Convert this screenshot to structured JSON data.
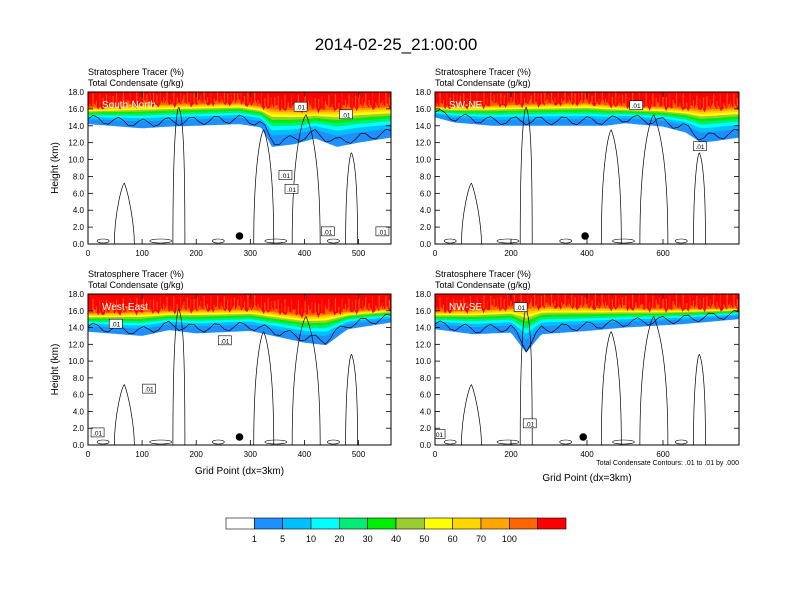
{
  "title": "2014-02-25_21:00:00",
  "colors": {
    "tracer_levels": [
      "#ffffff",
      "#1e8fff",
      "#00bfff",
      "#00ffff",
      "#00ee76",
      "#00ee00",
      "#9acd32",
      "#ffff00",
      "#ffd700",
      "#ffa500",
      "#ff6600",
      "#ff0000"
    ],
    "contour": "#000000"
  },
  "chart_data": [
    {
      "type": "heatmap",
      "panel_label": "South-North",
      "title_lines": [
        "Stratosphere Tracer   (%)",
        "Total Condensate   (g/kg)"
      ],
      "ylabel": "Height (km)",
      "xlabel": "",
      "xlim": [
        0,
        560
      ],
      "ylim": [
        0,
        18
      ],
      "xticks": [
        "0",
        "100",
        "200",
        "300",
        "400",
        "500"
      ],
      "yticks": [
        "0.0",
        "2.0",
        "4.0",
        "6.0",
        "8.0",
        "10.0",
        "12.0",
        "14.0",
        "16.0",
        "18.0"
      ],
      "contour_labels": [
        ".01",
        ".01",
        ".01",
        ".01",
        ".01",
        ".01"
      ],
      "station_marker_x": 280,
      "tracer_100_base_km": [
        [
          0,
          16.2
        ],
        [
          100,
          16.6
        ],
        [
          200,
          16.7
        ],
        [
          280,
          16.8
        ],
        [
          340,
          16.2
        ],
        [
          400,
          16.0
        ],
        [
          450,
          16.1
        ],
        [
          500,
          16.3
        ],
        [
          560,
          16.4
        ]
      ],
      "tracer_1_base_km": [
        [
          0,
          14.2
        ],
        [
          60,
          13.9
        ],
        [
          100,
          13.7
        ],
        [
          150,
          13.9
        ],
        [
          200,
          14.0
        ],
        [
          280,
          14.2
        ],
        [
          320,
          13.8
        ],
        [
          340,
          11.5
        ],
        [
          380,
          11.8
        ],
        [
          420,
          12.5
        ],
        [
          460,
          11.5
        ],
        [
          500,
          12.0
        ],
        [
          540,
          12.4
        ],
        [
          560,
          12.6
        ]
      ]
    },
    {
      "type": "heatmap",
      "panel_label": "SW-NE",
      "title_lines": [
        "Stratosphere Tracer   (%)",
        "Total Condensate   (g/kg)"
      ],
      "ylabel": "",
      "xlabel": "",
      "xlim": [
        0,
        800
      ],
      "ylim": [
        0,
        18
      ],
      "xticks": [
        "0",
        "200",
        "400",
        "600"
      ],
      "yticks": [
        "0.0",
        "2.0",
        "4.0",
        "6.0",
        "8.0",
        "10.0",
        "12.0",
        "14.0",
        "16.0",
        "18.0"
      ],
      "contour_labels": [
        ".01",
        ".01"
      ],
      "station_marker_x": 395,
      "tracer_100_base_km": [
        [
          0,
          16.3
        ],
        [
          200,
          16.6
        ],
        [
          400,
          16.8
        ],
        [
          500,
          16.4
        ],
        [
          600,
          16.3
        ],
        [
          700,
          16.1
        ],
        [
          800,
          16.3
        ]
      ],
      "tracer_1_base_km": [
        [
          0,
          15.0
        ],
        [
          50,
          14.4
        ],
        [
          150,
          14.0
        ],
        [
          300,
          14.0
        ],
        [
          450,
          14.0
        ],
        [
          500,
          14.3
        ],
        [
          600,
          13.9
        ],
        [
          660,
          13.2
        ],
        [
          700,
          12.0
        ],
        [
          740,
          12.2
        ],
        [
          800,
          12.6
        ]
      ]
    },
    {
      "type": "heatmap",
      "panel_label": "West-East",
      "title_lines": [
        "Stratosphere Tracer   (%)",
        "Total Condensate   (g/kg)"
      ],
      "ylabel": "Height (km)",
      "xlabel": "Grid Point (dx=3km)",
      "xlim": [
        0,
        560
      ],
      "ylim": [
        0,
        18
      ],
      "xticks": [
        "0",
        "100",
        "200",
        "300",
        "400",
        "500"
      ],
      "yticks": [
        "0.0",
        "2.0",
        "4.0",
        "6.0",
        "8.0",
        "10.0",
        "12.0",
        "14.0",
        "16.0",
        "18.0"
      ],
      "contour_labels": [
        ".01",
        ".01",
        ".01",
        ".01"
      ],
      "station_marker_x": 280,
      "tracer_100_base_km": [
        [
          0,
          15.8
        ],
        [
          100,
          16.0
        ],
        [
          200,
          16.2
        ],
        [
          300,
          16.3
        ],
        [
          400,
          15.6
        ],
        [
          500,
          16.1
        ],
        [
          560,
          16.3
        ]
      ],
      "tracer_1_base_km": [
        [
          0,
          13.5
        ],
        [
          60,
          13.2
        ],
        [
          100,
          13.0
        ],
        [
          150,
          13.7
        ],
        [
          200,
          13.3
        ],
        [
          300,
          13.6
        ],
        [
          400,
          12.2
        ],
        [
          440,
          11.9
        ],
        [
          480,
          13.8
        ],
        [
          560,
          14.6
        ]
      ]
    },
    {
      "type": "heatmap",
      "panel_label": "NW-SE",
      "title_lines": [
        "Stratosphere Tracer   (%)",
        "Total Condensate   (g/kg)"
      ],
      "ylabel": "",
      "xlabel": "Grid Point (dx=3km)",
      "xlim": [
        0,
        800
      ],
      "ylim": [
        0,
        18
      ],
      "xticks": [
        "0",
        "200",
        "400",
        "600"
      ],
      "yticks": [
        "0.0",
        "2.0",
        "4.0",
        "6.0",
        "8.0",
        "10.0",
        "12.0",
        "14.0",
        "16.0",
        "18.0"
      ],
      "contour_labels": [
        ".01",
        ".01",
        ".01"
      ],
      "station_marker_x": 390,
      "contour_info": "Total Condensate Contours: .01 to .01 by .000",
      "tracer_100_base_km": [
        [
          0,
          16.0
        ],
        [
          200,
          16.4
        ],
        [
          300,
          16.6
        ],
        [
          400,
          16.5
        ],
        [
          600,
          16.3
        ],
        [
          800,
          16.4
        ]
      ],
      "tracer_1_base_km": [
        [
          0,
          13.8
        ],
        [
          100,
          13.2
        ],
        [
          200,
          13.4
        ],
        [
          240,
          11.0
        ],
        [
          280,
          13.2
        ],
        [
          400,
          13.6
        ],
        [
          500,
          14.0
        ],
        [
          650,
          14.4
        ],
        [
          800,
          15.0
        ]
      ]
    }
  ],
  "colorbar": {
    "labels": [
      "1",
      "5",
      "10",
      "20",
      "30",
      "40",
      "50",
      "60",
      "70",
      "100"
    ]
  }
}
